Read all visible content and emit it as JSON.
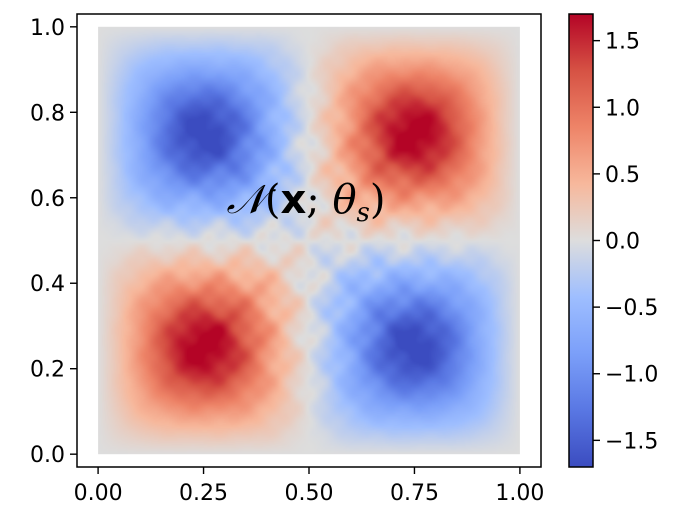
{
  "chart_data": {
    "type": "heatmap",
    "title": "",
    "xlabel": "",
    "ylabel": "",
    "xlim": [
      -0.05,
      1.05
    ],
    "ylim": [
      -0.03,
      1.03
    ],
    "data_extent": [
      0,
      1,
      0,
      1
    ],
    "x_ticks": [
      0.0,
      0.25,
      0.5,
      0.75,
      1.0
    ],
    "x_tick_labels": [
      "0.00",
      "0.25",
      "0.50",
      "0.75",
      "1.00"
    ],
    "y_ticks": [
      0.0,
      0.2,
      0.4,
      0.6,
      0.8,
      1.0
    ],
    "y_tick_labels": [
      "0.0",
      "0.2",
      "0.4",
      "0.6",
      "0.8",
      "1.0"
    ],
    "colormap": "coolwarm",
    "colorbar": {
      "vmin": -1.7,
      "vmax": 1.7,
      "ticks": [
        1.5,
        1.0,
        0.5,
        0.0,
        -0.5,
        -1.0,
        -1.5
      ],
      "tick_labels": [
        "1.5",
        "1.0",
        "0.5",
        "0.0",
        "−0.5",
        "−1.0",
        "−1.5"
      ],
      "placement": "right"
    },
    "pattern": {
      "description_of_values": "z = sin(2*pi*x) * sin(2*pi*y) with fine multi-scale ripple texture; zero at domain edges",
      "max": 1.6,
      "min": -1.6,
      "peaks": [
        {
          "x": 0.17,
          "y": 0.18,
          "value": 1.5
        },
        {
          "x": 0.33,
          "y": 0.33,
          "value": 1.5
        },
        {
          "x": 0.67,
          "y": 0.67,
          "value": 1.5
        },
        {
          "x": 0.83,
          "y": 0.83,
          "value": 1.6
        }
      ],
      "troughs": [
        {
          "x": 0.17,
          "y": 0.83,
          "value": -1.5
        },
        {
          "x": 0.33,
          "y": 0.67,
          "value": -1.4
        },
        {
          "x": 0.67,
          "y": 0.33,
          "value": -1.5
        },
        {
          "x": 0.83,
          "y": 0.17,
          "value": -1.6
        }
      ]
    },
    "annotation": {
      "x": 0.5,
      "y": 0.56
    }
  },
  "colors": {
    "cmap_low": "#3b4cc0",
    "cmap_mid": "#dddddd",
    "cmap_high": "#b40426",
    "axis": "#000000"
  }
}
